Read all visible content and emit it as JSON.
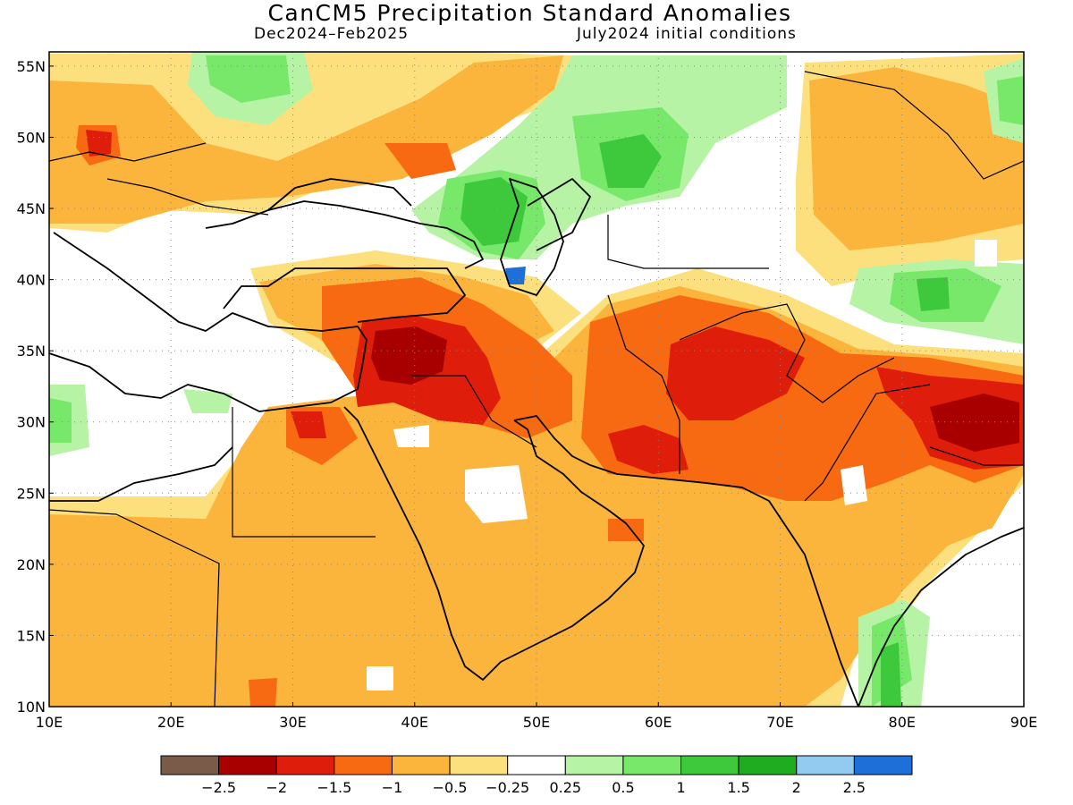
{
  "title": "CanCM5 Precipitation Standard Anomalies",
  "subtitle_left": "Dec2024–Feb2025",
  "subtitle_right": "July2024 initial conditions",
  "lat_labels": [
    "55N",
    "50N",
    "45N",
    "40N",
    "35N",
    "30N",
    "25N",
    "20N",
    "15N",
    "10N"
  ],
  "lon_labels": [
    "10E",
    "20E",
    "30E",
    "40E",
    "50E",
    "60E",
    "70E",
    "80E",
    "90E"
  ],
  "legend": {
    "colors": [
      "#7a5a48",
      "#a80000",
      "#df1d0b",
      "#f86a11",
      "#fbb53d",
      "#fde07e",
      "#ffffff",
      "#b6f3a4",
      "#78e86b",
      "#3ec93d",
      "#1fac21",
      "#93caf0",
      "#1e6fd8"
    ],
    "labels": [
      "−2.5",
      "−2",
      "−1.5",
      "−1",
      "−0.5",
      "−0.25",
      "0.25",
      "0.5",
      "1",
      "1.5",
      "2",
      "2.5"
    ]
  },
  "chart_data": {
    "type": "heatmap",
    "title": "CanCM5 Precipitation Standard Anomalies",
    "period": "Dec2024–Feb2025",
    "initial_conditions": "July2024 initial conditions",
    "lon_range": [
      10,
      90
    ],
    "lat_range": [
      10,
      56
    ],
    "contour_levels": [
      -2.5,
      -2,
      -1.5,
      -1,
      -0.5,
      -0.25,
      0.25,
      0.5,
      1,
      1.5,
      2,
      2.5
    ],
    "grid": true
  }
}
